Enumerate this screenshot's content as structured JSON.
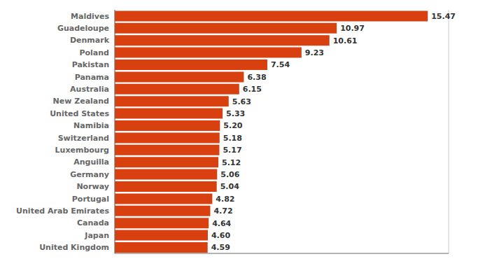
{
  "chart_data": {
    "type": "bar",
    "orientation": "horizontal",
    "categories": [
      "Maldives",
      "Guadeloupe",
      "Denmark",
      "Poland",
      "Pakistan",
      "Panama",
      "Australia",
      "New Zealand",
      "United States",
      "Namibia",
      "Switzerland",
      "Luxembourg",
      "Anguilla",
      "Germany",
      "Norway",
      "Portugal",
      "United Arab Emirates",
      "Canada",
      "Japan",
      "United Kingdom"
    ],
    "values": [
      15.47,
      10.97,
      10.61,
      9.23,
      7.54,
      6.38,
      6.15,
      5.63,
      5.33,
      5.2,
      5.18,
      5.17,
      5.12,
      5.06,
      5.04,
      4.82,
      4.72,
      4.64,
      4.6,
      4.59
    ],
    "value_labels": [
      "15.47",
      "10.97",
      "10.61",
      "9.23",
      "7.54",
      "6.38",
      "6.15",
      "5.63",
      "5.33",
      "5.20",
      "5.18",
      "5.17",
      "5.12",
      "5.06",
      "5.04",
      "4.82",
      "4.72",
      "4.64",
      "4.60",
      "4.59"
    ],
    "color": "#d94010",
    "xlim": [
      0,
      16.5
    ],
    "xticks": [
      0,
      2,
      4,
      6,
      8,
      10,
      12,
      14,
      16
    ],
    "grid": true,
    "data_labels": true,
    "tick_labels": "y"
  }
}
